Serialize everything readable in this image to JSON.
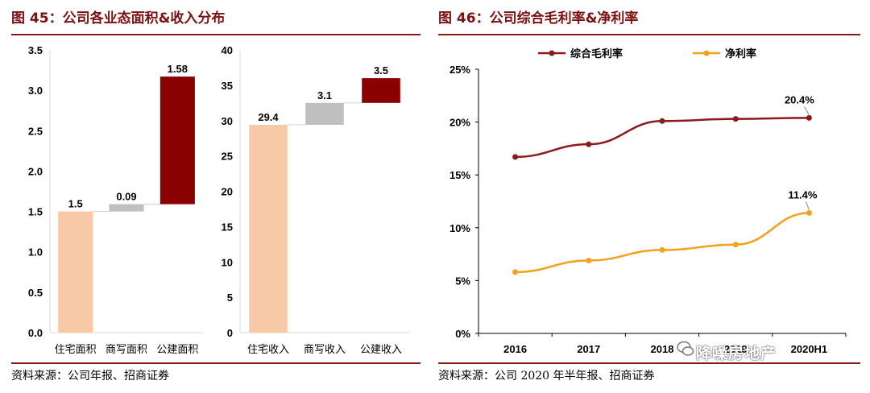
{
  "left": {
    "title": "图 45：公司各业态面积&收入分布",
    "source": "资料来源：公司年报、招商证券"
  },
  "right": {
    "title": "图 46：公司综合毛利率&净利率",
    "source": "资料来源：公司 2020 年半年报、招商证券"
  },
  "watermark": "降噪房地产",
  "colors": {
    "residential": "#f8c9a7",
    "office": "#c0c0c0",
    "public": "#8b0000",
    "gross": "#8b1a1a",
    "net": "#f5a01a",
    "rule": "#8b1a1a"
  },
  "chart_data": [
    {
      "type": "bar",
      "subtype": "waterfall",
      "title": "公司各业态面积",
      "categories": [
        "住宅面积",
        "商写面积",
        "公建面积"
      ],
      "values": [
        1.5,
        0.09,
        1.58
      ],
      "labels": [
        "1.5",
        "0.09",
        "1.58"
      ],
      "ylim": [
        0,
        3.5
      ],
      "yticks": [
        "0.0",
        "0.5",
        "1.0",
        "1.5",
        "2.0",
        "2.5",
        "3.0",
        "3.5"
      ]
    },
    {
      "type": "bar",
      "subtype": "waterfall",
      "title": "公司各业态收入",
      "categories": [
        "住宅收入",
        "商写收入",
        "公建收入"
      ],
      "values": [
        29.4,
        3.1,
        3.5
      ],
      "labels": [
        "29.4",
        "3.1",
        "3.5"
      ],
      "ylim": [
        0,
        40
      ],
      "yticks": [
        "0",
        "5",
        "10",
        "15",
        "20",
        "25",
        "30",
        "35",
        "40"
      ]
    },
    {
      "type": "line",
      "title": "公司综合毛利率&净利率",
      "x": [
        "2016",
        "2017",
        "2018",
        "2019",
        "2020H1"
      ],
      "ylim": [
        0,
        25
      ],
      "yticks": [
        "0%",
        "5%",
        "10%",
        "15%",
        "20%",
        "25%"
      ],
      "series": [
        {
          "name": "综合毛利率",
          "values": [
            16.7,
            17.9,
            20.1,
            20.3,
            20.4
          ]
        },
        {
          "name": "净利率",
          "values": [
            5.8,
            6.9,
            7.9,
            8.4,
            11.4
          ]
        }
      ],
      "annotations": [
        "20.4%",
        "11.4%"
      ],
      "legend": "top"
    }
  ]
}
